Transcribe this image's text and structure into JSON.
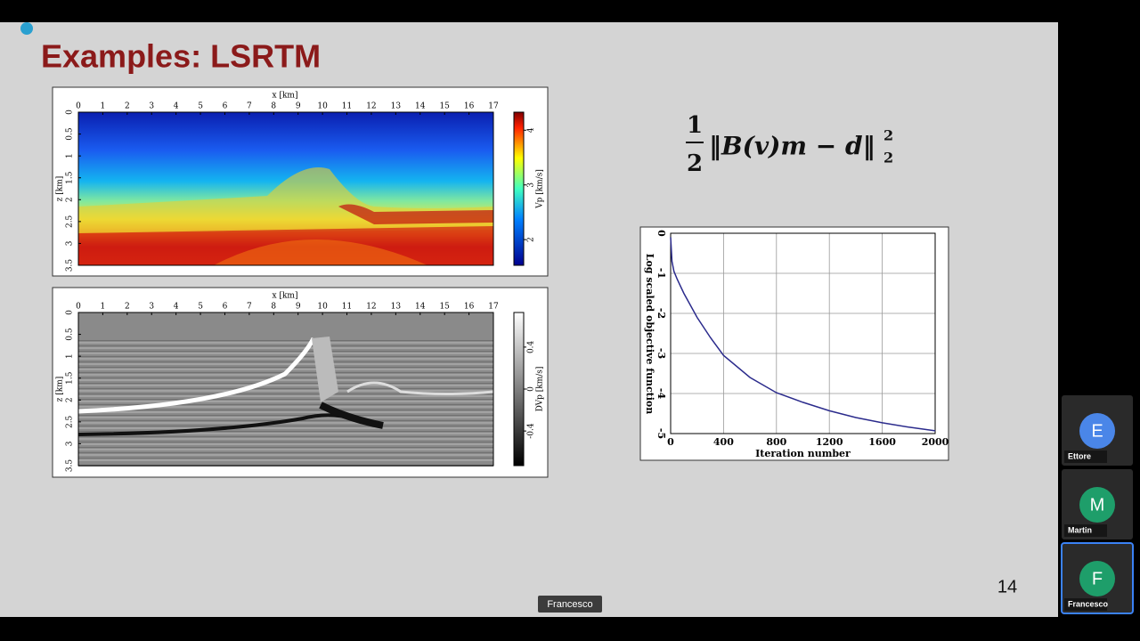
{
  "slide": {
    "title": "Examples: LSRTM",
    "page_number": 14
  },
  "formula": {
    "numerator": "1",
    "denominator": "2",
    "body": "‖B(v)m − d‖",
    "subscript": "2",
    "superscript": "2"
  },
  "velocity_model": {
    "x_label": "x [km]",
    "z_label": "z [km]",
    "xlim": [
      0,
      17
    ],
    "xticks": [
      0,
      1,
      2,
      3,
      4,
      5,
      6,
      7,
      8,
      9,
      10,
      11,
      12,
      13,
      14,
      15,
      16,
      17
    ],
    "zlim": [
      0,
      3.5
    ],
    "zticks": [
      0,
      0.5,
      1,
      1.5,
      2,
      2.5,
      3,
      3.5
    ],
    "colorbar_label": "Vp [km/s]",
    "colorbar_lim": [
      1.53,
      4.33
    ],
    "colorbar_ticks": [
      2,
      3,
      4
    ]
  },
  "reflectivity_image": {
    "x_label": "x [km]",
    "z_label": "z [km]",
    "xlim": [
      0,
      17
    ],
    "xticks": [
      0,
      1,
      2,
      3,
      4,
      5,
      6,
      7,
      8,
      9,
      10,
      11,
      12,
      13,
      14,
      15,
      16,
      17
    ],
    "zlim": [
      0,
      3.5
    ],
    "zticks": [
      0,
      0.5,
      1,
      1.5,
      2,
      2.5,
      3,
      3.5
    ],
    "colorbar_label": "DVp [km/s]",
    "colorbar_lim": [
      -0.73,
      0.73
    ],
    "colorbar_ticks": [
      0.4,
      0,
      -0.4
    ]
  },
  "chart_data": {
    "type": "line",
    "x_label": "Iteration number",
    "y_label": "Log scaled objective function",
    "x": [
      0,
      10,
      25,
      50,
      100,
      200,
      300,
      400,
      600,
      800,
      1000,
      1200,
      1400,
      1600,
      1800,
      2000
    ],
    "values": [
      -0.1,
      -0.7,
      -0.95,
      -1.15,
      -1.5,
      -2.1,
      -2.6,
      -3.05,
      -3.6,
      -3.98,
      -4.22,
      -4.43,
      -4.6,
      -4.73,
      -4.84,
      -4.93
    ],
    "color": "#2b2b8c",
    "xlim": [
      0,
      2000
    ],
    "xticks": [
      0,
      400,
      800,
      1200,
      1600,
      2000
    ],
    "ylim": [
      -5,
      0
    ],
    "yticks": [
      0,
      -1,
      -2,
      -3,
      -4,
      -5
    ],
    "grid": true
  },
  "participants": [
    {
      "initial": "E",
      "name": "Ettore",
      "color": "#4a86e8"
    },
    {
      "initial": "M",
      "name": "Martin",
      "color": "#1e9e6a"
    },
    {
      "initial": "F",
      "name": "Francesco",
      "color": "#1e9e6a"
    }
  ],
  "active_speaker": "Francesco"
}
